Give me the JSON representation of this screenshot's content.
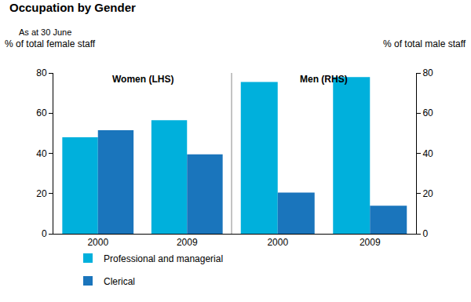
{
  "chart_data": {
    "type": "bar",
    "title": "Occupation by Gender",
    "subtitle": "As at 30 June",
    "legend": "bottom",
    "grid": false,
    "panels": [
      {
        "title": "Women (LHS)",
        "y_label": "% of total female staff",
        "categories": [
          "2000",
          "2009"
        ],
        "series": [
          {
            "name": "Professional and managerial",
            "color": "#00b0dc",
            "values": [
              48,
              56.5
            ]
          },
          {
            "name": "Clerical",
            "color": "#1a75bc",
            "values": [
              51.5,
              39.5
            ]
          }
        ],
        "ylim": [
          0,
          80
        ],
        "yticks": [
          0,
          20,
          40,
          60,
          80
        ]
      },
      {
        "title": "Men (RHS)",
        "y_label": "% of total male staff",
        "categories": [
          "2000",
          "2009"
        ],
        "series": [
          {
            "name": "Professional and managerial",
            "color": "#00b0dc",
            "values": [
              75.5,
              78
            ]
          },
          {
            "name": "Clerical",
            "color": "#1a75bc",
            "values": [
              20.5,
              14
            ]
          }
        ],
        "ylim": [
          0,
          80
        ],
        "yticks": [
          0,
          20,
          40,
          60,
          80
        ]
      }
    ]
  }
}
